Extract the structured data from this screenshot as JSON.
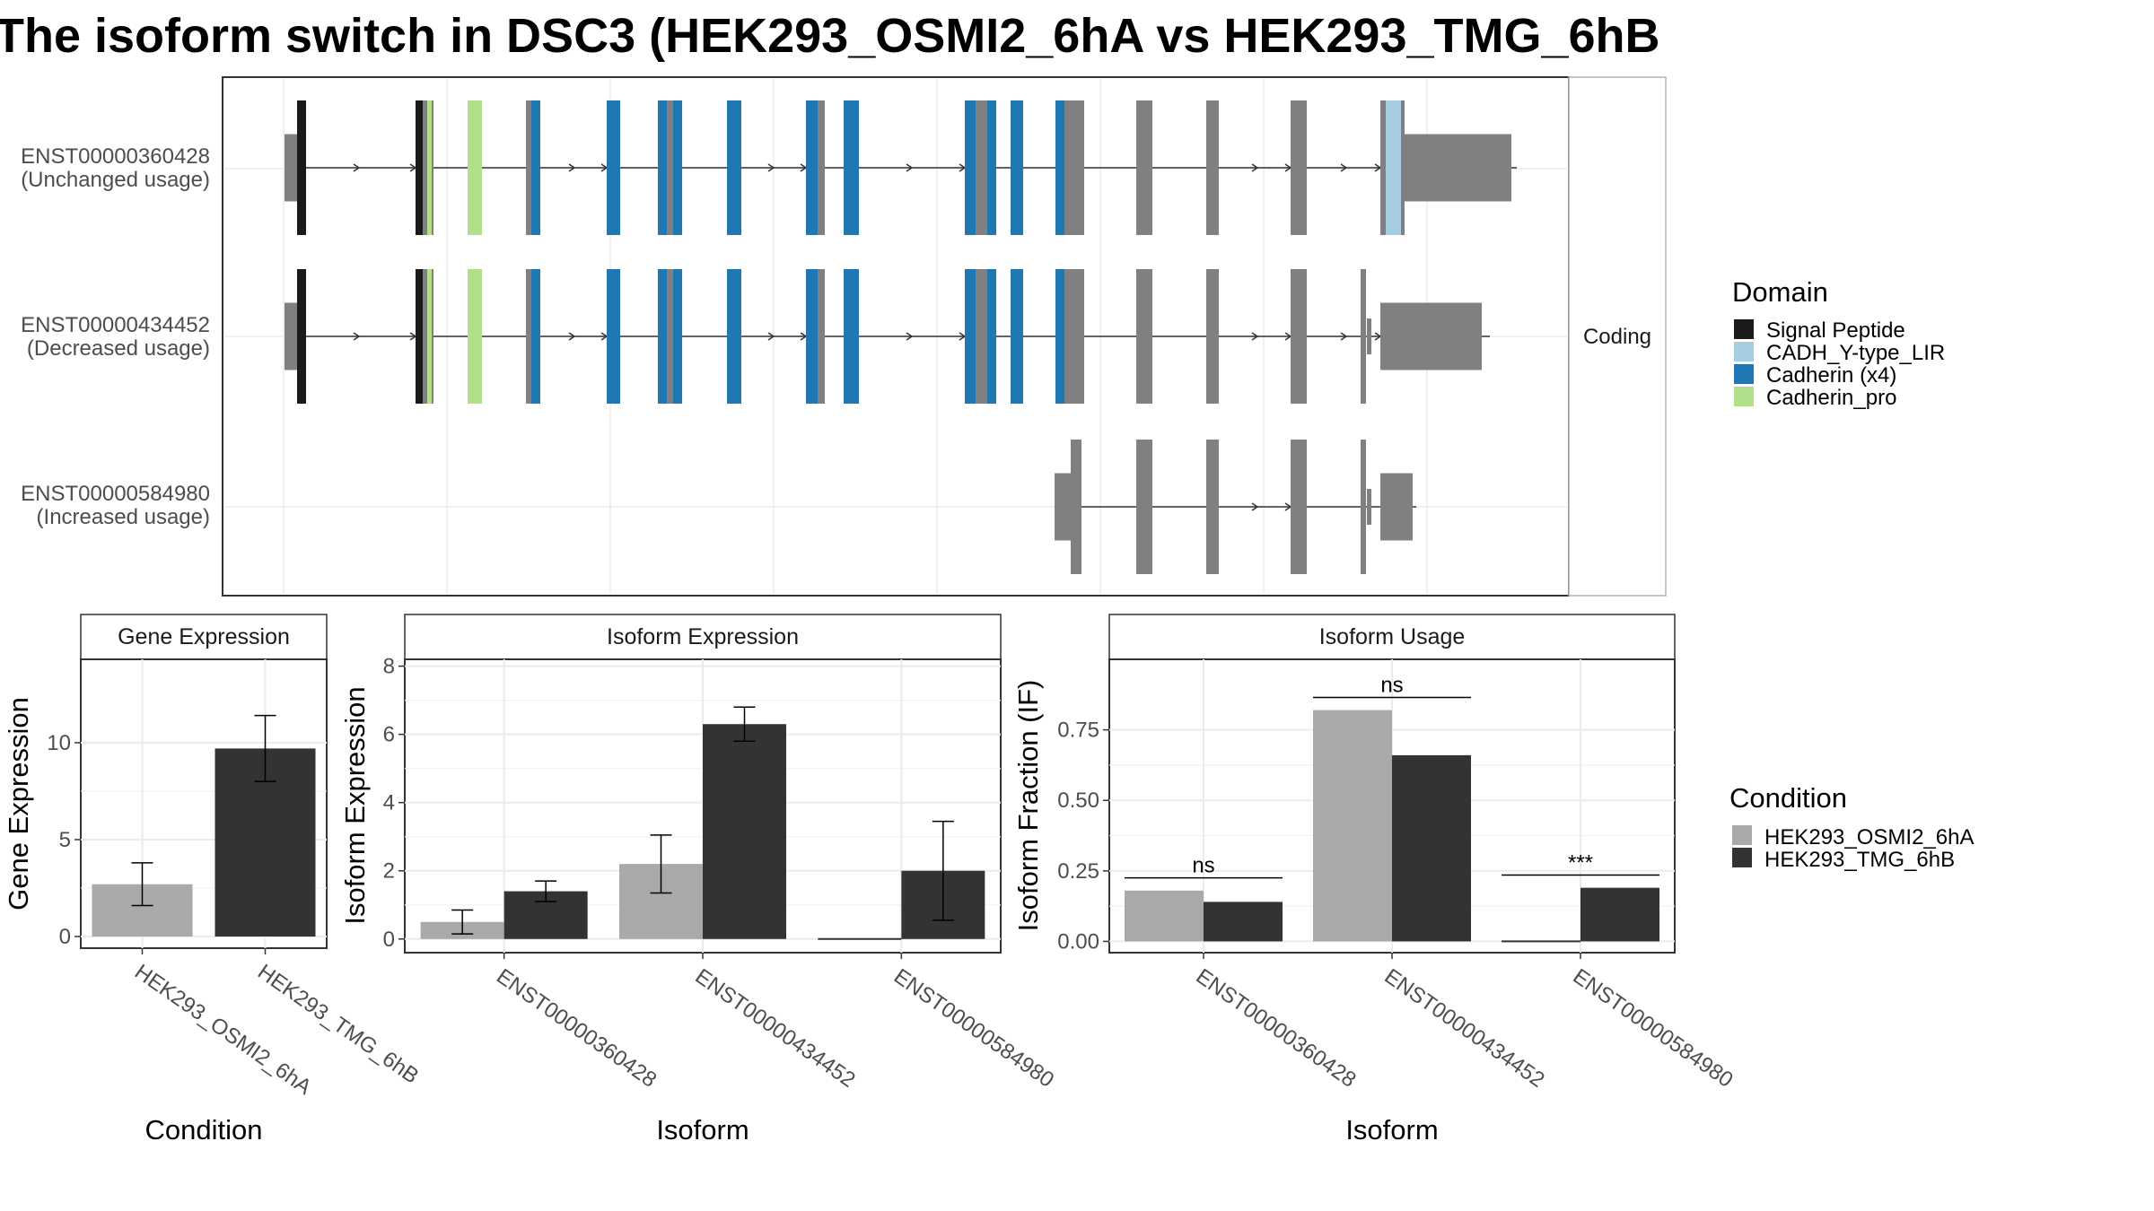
{
  "title": "The isoform switch in DSC3 (HEK293_OSMI2_6hA vs HEK293_TMG_6hB",
  "colors": {
    "signal_peptide": "#1a1a1a",
    "cadh_lir": "#a6cee3",
    "cadherin": "#1f78b4",
    "cadherin_pro": "#b2df8a",
    "exon": "#808080",
    "cond_a": "#a9a9a9",
    "cond_b": "#333333"
  },
  "structure": {
    "facet_label": "Coding",
    "tracks": [
      {
        "id": "ENST00000360428",
        "usage": "(Unchanged usage)"
      },
      {
        "id": "ENST00000434452",
        "usage": "(Decreased usage)"
      },
      {
        "id": "ENST00000584980",
        "usage": "(Increased usage)"
      }
    ]
  },
  "legend_domain": {
    "title": "Domain",
    "items": [
      {
        "label": "Signal Peptide",
        "color": "#1a1a1a"
      },
      {
        "label": "CADH_Y-type_LIR",
        "color": "#a6cee3"
      },
      {
        "label": "Cadherin (x4)",
        "color": "#1f78b4"
      },
      {
        "label": "Cadherin_pro",
        "color": "#b2df8a"
      }
    ]
  },
  "legend_condition": {
    "title": "Condition",
    "items": [
      {
        "label": "HEK293_OSMI2_6hA",
        "color": "#a9a9a9"
      },
      {
        "label": "HEK293_TMG_6hB",
        "color": "#333333"
      }
    ]
  },
  "chart_data": [
    {
      "type": "bar",
      "title": "Gene Expression",
      "xlabel": "Condition",
      "ylabel": "Gene Expression",
      "categories": [
        "HEK293_OSMI2_6hA",
        "HEK293_TMG_6hB"
      ],
      "values": [
        2.7,
        9.7
      ],
      "error_low": [
        1.6,
        8.0
      ],
      "error_high": [
        3.8,
        11.4
      ],
      "colors": [
        "#a9a9a9",
        "#333333"
      ],
      "ylim": [
        -0.6,
        14.3
      ],
      "yticks": [
        0,
        5,
        10
      ]
    },
    {
      "type": "bar",
      "title": "Isoform Expression",
      "xlabel": "Isoform",
      "ylabel": "Isoform Expression",
      "categories": [
        "ENST00000360428",
        "ENST00000434452",
        "ENST00000584980"
      ],
      "series": [
        {
          "name": "HEK293_OSMI2_6hA",
          "values": [
            0.5,
            2.2,
            0.0
          ],
          "error_low": [
            0.15,
            1.35,
            0.0
          ],
          "error_high": [
            0.85,
            3.05,
            0.0
          ]
        },
        {
          "name": "HEK293_TMG_6hB",
          "values": [
            1.4,
            6.3,
            2.0
          ],
          "error_low": [
            1.1,
            5.8,
            0.55
          ],
          "error_high": [
            1.7,
            6.8,
            3.45
          ]
        }
      ],
      "ylim": [
        -0.4,
        8.2
      ],
      "yticks": [
        0,
        2,
        4,
        6,
        8
      ]
    },
    {
      "type": "bar",
      "title": "Isoform Usage",
      "xlabel": "Isoform",
      "ylabel": "Isoform Fraction (IF)",
      "categories": [
        "ENST00000360428",
        "ENST00000434452",
        "ENST00000584980"
      ],
      "series": [
        {
          "name": "HEK293_OSMI2_6hA",
          "values": [
            0.18,
            0.82,
            0.0
          ]
        },
        {
          "name": "HEK293_TMG_6hB",
          "values": [
            0.14,
            0.66,
            0.19
          ]
        }
      ],
      "significance": [
        {
          "label": "ns",
          "y": 0.225
        },
        {
          "label": "ns",
          "y": 0.865
        },
        {
          "label": "***",
          "y": 0.235
        }
      ],
      "ylim": [
        -0.04,
        1.0
      ],
      "yticks": [
        0.0,
        0.25,
        0.5,
        0.75
      ],
      "ytick_labels": [
        "0.00",
        "0.25",
        "0.50",
        "0.75"
      ]
    }
  ]
}
